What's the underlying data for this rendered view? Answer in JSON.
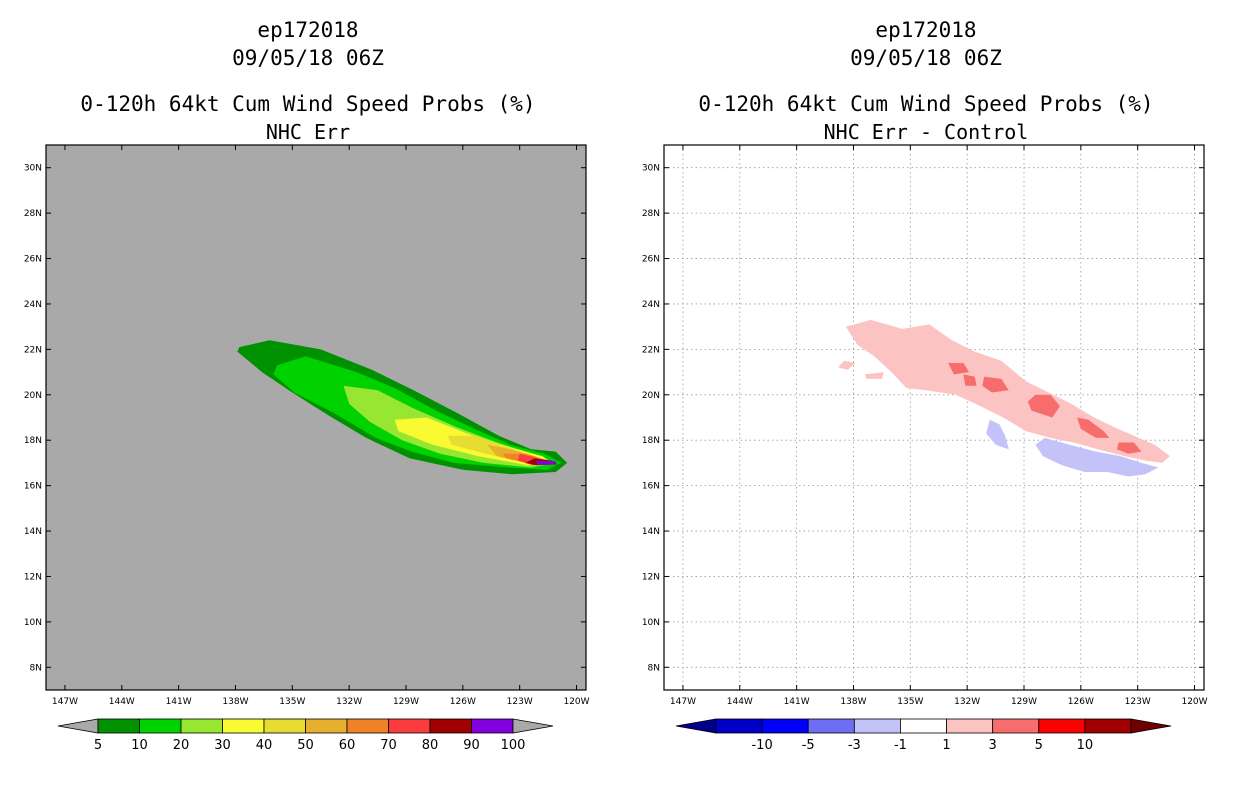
{
  "chart_data": [
    {
      "type": "contour-map",
      "storm_id": "ep172018",
      "datetime": "09/05/18 06Z",
      "title": "0-120h 64kt Cum Wind Speed Probs (%)",
      "subtitle": "NHC Err",
      "xlabels": [
        "147W",
        "144W",
        "141W",
        "138W",
        "135W",
        "132W",
        "129W",
        "126W",
        "123W",
        "120W"
      ],
      "xlim": [
        -148,
        -119.5
      ],
      "ylabels": [
        "30N",
        "28N",
        "26N",
        "24N",
        "22N",
        "20N",
        "18N",
        "16N",
        "14N",
        "12N",
        "10N",
        "8N"
      ],
      "ylim": [
        7,
        31
      ],
      "grid": false,
      "background": "#a9a9a9",
      "contours": [
        {
          "level": 5,
          "color": "#009100",
          "poly": [
            [
              -137.8,
              22.1
            ],
            [
              -136.2,
              22.4
            ],
            [
              -133.5,
              22.0
            ],
            [
              -130.8,
              21.1
            ],
            [
              -128.6,
              20.2
            ],
            [
              -126.3,
              19.2
            ],
            [
              -124.1,
              18.2
            ],
            [
              -122.4,
              17.6
            ],
            [
              -121.1,
              17.5
            ],
            [
              -120.5,
              17.0
            ],
            [
              -121.1,
              16.6
            ],
            [
              -123.4,
              16.5
            ],
            [
              -126.0,
              16.7
            ],
            [
              -128.8,
              17.2
            ],
            [
              -131.1,
              18.1
            ],
            [
              -133.1,
              19.1
            ],
            [
              -135.0,
              20.1
            ],
            [
              -136.6,
              21.0
            ],
            [
              -137.9,
              21.9
            ]
          ]
        },
        {
          "level": 10,
          "color": "#00d200",
          "poly": [
            [
              -135.8,
              21.3
            ],
            [
              -134.3,
              21.7
            ],
            [
              -131.6,
              21.0
            ],
            [
              -129.6,
              20.3
            ],
            [
              -127.4,
              19.3
            ],
            [
              -125.4,
              18.5
            ],
            [
              -123.5,
              17.8
            ],
            [
              -121.7,
              17.4
            ],
            [
              -120.8,
              17.0
            ],
            [
              -121.6,
              16.7
            ],
            [
              -123.6,
              16.8
            ],
            [
              -126.5,
              17.0
            ],
            [
              -128.7,
              17.5
            ],
            [
              -130.6,
              18.1
            ],
            [
              -132.8,
              19.2
            ],
            [
              -134.9,
              20.1
            ],
            [
              -136.0,
              20.9
            ]
          ]
        },
        {
          "level": 20,
          "color": "#96e632",
          "poly": [
            [
              -132.3,
              20.4
            ],
            [
              -130.5,
              20.2
            ],
            [
              -128.6,
              19.4
            ],
            [
              -126.4,
              18.6
            ],
            [
              -124.2,
              17.9
            ],
            [
              -122.3,
              17.4
            ],
            [
              -121.1,
              17.0
            ],
            [
              -122.4,
              16.8
            ],
            [
              -124.9,
              17.0
            ],
            [
              -127.2,
              17.4
            ],
            [
              -129.2,
              18.0
            ],
            [
              -130.9,
              18.8
            ],
            [
              -132.0,
              19.6
            ]
          ]
        },
        {
          "level": 30,
          "color": "#fafa32",
          "poly": [
            [
              -129.6,
              18.9
            ],
            [
              -127.9,
              19.0
            ],
            [
              -125.8,
              18.3
            ],
            [
              -123.6,
              17.7
            ],
            [
              -121.8,
              17.3
            ],
            [
              -121.3,
              17.0
            ],
            [
              -122.6,
              16.9
            ],
            [
              -125.2,
              17.3
            ],
            [
              -127.6,
              17.8
            ],
            [
              -129.4,
              18.4
            ]
          ]
        },
        {
          "level": 40,
          "color": "#e6dc32",
          "poly": [
            [
              -126.8,
              18.2
            ],
            [
              -125.4,
              18.2
            ],
            [
              -123.7,
              17.7
            ],
            [
              -122.2,
              17.3
            ],
            [
              -121.4,
              17.0
            ],
            [
              -122.7,
              17.0
            ],
            [
              -124.8,
              17.4
            ],
            [
              -126.6,
              17.8
            ]
          ]
        },
        {
          "level": 50,
          "color": "#e6af2d",
          "poly": [
            [
              -124.7,
              17.8
            ],
            [
              -123.5,
              17.6
            ],
            [
              -122.2,
              17.3
            ],
            [
              -121.4,
              17.0
            ],
            [
              -122.6,
              17.0
            ],
            [
              -124.2,
              17.3
            ]
          ]
        },
        {
          "level": 60,
          "color": "#f08228",
          "poly": [
            [
              -123.9,
              17.4
            ],
            [
              -122.7,
              17.4
            ],
            [
              -121.5,
              17.1
            ],
            [
              -122.6,
              17.0
            ],
            [
              -123.7,
              17.2
            ]
          ]
        },
        {
          "level": 70,
          "color": "#fa3c3c",
          "poly": [
            [
              -123.0,
              17.4
            ],
            [
              -122.0,
              17.2
            ],
            [
              -121.4,
              17.0
            ],
            [
              -122.3,
              16.9
            ],
            [
              -123.1,
              17.1
            ]
          ]
        },
        {
          "level": 80,
          "color": "#a00000",
          "poly": [
            [
              -122.2,
              17.2
            ],
            [
              -121.3,
              17.1
            ],
            [
              -121.0,
              16.95
            ],
            [
              -122.1,
              16.9
            ],
            [
              -122.7,
              17.0
            ]
          ]
        },
        {
          "level": 90,
          "color": "#8200dc",
          "poly": [
            [
              -122.1,
              17.1
            ],
            [
              -121.1,
              17.08
            ],
            [
              -121.1,
              16.92
            ],
            [
              -122.1,
              16.92
            ]
          ]
        }
      ],
      "colorbar": {
        "levels": [
          "5",
          "10",
          "20",
          "30",
          "40",
          "50",
          "60",
          "70",
          "80",
          "90",
          "100"
        ],
        "colors": [
          "#009100",
          "#00d200",
          "#96e632",
          "#fafa32",
          "#e6dc32",
          "#e6af2d",
          "#f08228",
          "#fa3c3c",
          "#a00000",
          "#8200dc"
        ],
        "under_color": "#a9a9a9",
        "over_color": "#a9a9a9"
      }
    },
    {
      "type": "contour-map",
      "storm_id": "ep172018",
      "datetime": "09/05/18 06Z",
      "title": "0-120h 64kt Cum Wind Speed Probs (%)",
      "subtitle": "NHC Err - Control",
      "xlabels": [
        "147W",
        "144W",
        "141W",
        "138W",
        "135W",
        "132W",
        "129W",
        "126W",
        "123W",
        "120W"
      ],
      "xlim": [
        -148,
        -119.5
      ],
      "ylabels": [
        "30N",
        "28N",
        "26N",
        "24N",
        "22N",
        "20N",
        "18N",
        "16N",
        "14N",
        "12N",
        "10N",
        "8N"
      ],
      "ylim": [
        7,
        31
      ],
      "grid": true,
      "background": "#ffffff",
      "contours": [
        {
          "level": 1,
          "color": "#fcc3c3",
          "poly": [
            [
              -138.4,
              23.0
            ],
            [
              -137.1,
              23.3
            ],
            [
              -135.4,
              22.9
            ],
            [
              -134.0,
              23.1
            ],
            [
              -132.8,
              22.4
            ],
            [
              -131.6,
              21.9
            ],
            [
              -130.2,
              21.5
            ],
            [
              -128.9,
              20.6
            ],
            [
              -127.7,
              20.1
            ],
            [
              -126.5,
              19.6
            ],
            [
              -125.3,
              19.0
            ],
            [
              -124.3,
              18.6
            ],
            [
              -123.2,
              18.2
            ],
            [
              -122.1,
              17.8
            ],
            [
              -121.3,
              17.3
            ],
            [
              -121.7,
              17.0
            ],
            [
              -122.6,
              17.1
            ],
            [
              -123.7,
              17.3
            ],
            [
              -125.1,
              17.6
            ],
            [
              -126.4,
              17.9
            ],
            [
              -127.6,
              18.1
            ],
            [
              -128.9,
              18.4
            ],
            [
              -130.1,
              19.0
            ],
            [
              -131.3,
              19.5
            ],
            [
              -132.6,
              20.0
            ],
            [
              -134.2,
              20.2
            ],
            [
              -135.2,
              20.3
            ],
            [
              -136.0,
              21.0
            ],
            [
              -136.9,
              21.7
            ],
            [
              -137.8,
              22.2
            ]
          ]
        },
        {
          "level": 1,
          "color": "#fcc3c3",
          "poly": [
            [
              -138.5,
              21.5
            ],
            [
              -137.9,
              21.4
            ],
            [
              -138.3,
              21.1
            ],
            [
              -138.8,
              21.2
            ]
          ]
        },
        {
          "level": 1,
          "color": "#fcc3c3",
          "poly": [
            [
              -137.4,
              20.9
            ],
            [
              -136.4,
              21.0
            ],
            [
              -136.5,
              20.7
            ],
            [
              -137.3,
              20.7
            ]
          ]
        },
        {
          "level": 3,
          "color": "#f76d6d",
          "poly": [
            [
              -133.0,
              21.4
            ],
            [
              -132.2,
              21.4
            ],
            [
              -131.9,
              21.0
            ],
            [
              -132.7,
              20.9
            ]
          ]
        },
        {
          "level": 3,
          "color": "#f76d6d",
          "poly": [
            [
              -132.2,
              20.9
            ],
            [
              -131.6,
              20.8
            ],
            [
              -131.5,
              20.4
            ],
            [
              -132.1,
              20.4
            ]
          ]
        },
        {
          "level": 3,
          "color": "#f76d6d",
          "poly": [
            [
              -131.1,
              20.8
            ],
            [
              -130.2,
              20.7
            ],
            [
              -129.8,
              20.2
            ],
            [
              -130.7,
              20.1
            ],
            [
              -131.2,
              20.4
            ]
          ]
        },
        {
          "level": 3,
          "color": "#f76d6d",
          "poly": [
            [
              -128.4,
              20.0
            ],
            [
              -127.6,
              20.0
            ],
            [
              -127.1,
              19.5
            ],
            [
              -127.5,
              19.0
            ],
            [
              -128.6,
              19.3
            ],
            [
              -128.8,
              19.7
            ]
          ]
        },
        {
          "level": 3,
          "color": "#f76d6d",
          "poly": [
            [
              -126.2,
              19.0
            ],
            [
              -125.6,
              18.9
            ],
            [
              -124.8,
              18.4
            ],
            [
              -124.5,
              18.1
            ],
            [
              -125.2,
              18.1
            ],
            [
              -126.0,
              18.5
            ]
          ]
        },
        {
          "level": 3,
          "color": "#f76d6d",
          "poly": [
            [
              -124.0,
              17.9
            ],
            [
              -123.2,
              17.9
            ],
            [
              -122.8,
              17.5
            ],
            [
              -123.5,
              17.4
            ],
            [
              -124.1,
              17.6
            ]
          ]
        },
        {
          "level": -1,
          "color": "#c3c3fa",
          "poly": [
            [
              -130.8,
              18.9
            ],
            [
              -130.3,
              18.7
            ],
            [
              -130.0,
              18.2
            ],
            [
              -129.8,
              17.6
            ],
            [
              -130.5,
              17.8
            ],
            [
              -131.0,
              18.3
            ]
          ]
        },
        {
          "level": -1,
          "color": "#c3c3fa",
          "poly": [
            [
              -127.9,
              18.1
            ],
            [
              -126.6,
              17.8
            ],
            [
              -125.2,
              17.5
            ],
            [
              -123.9,
              17.3
            ],
            [
              -122.8,
              17.0
            ],
            [
              -121.9,
              16.8
            ],
            [
              -122.6,
              16.5
            ],
            [
              -123.5,
              16.4
            ],
            [
              -124.6,
              16.6
            ],
            [
              -125.8,
              16.6
            ],
            [
              -127.0,
              16.9
            ],
            [
              -128.0,
              17.3
            ],
            [
              -128.4,
              17.8
            ]
          ]
        }
      ],
      "colorbar": {
        "levels": [
          "-10",
          "-5",
          "-3",
          "-1",
          "1",
          "3",
          "5",
          "10"
        ],
        "colors": [
          "#0000c8",
          "#0000ff",
          "#6e6ef5",
          "#c3c3fa",
          "#ffffff",
          "#fcc3c3",
          "#f76d6d",
          "#ff0000",
          "#a00000"
        ],
        "under_color": "#00008c",
        "over_color": "#6e0000"
      }
    }
  ]
}
